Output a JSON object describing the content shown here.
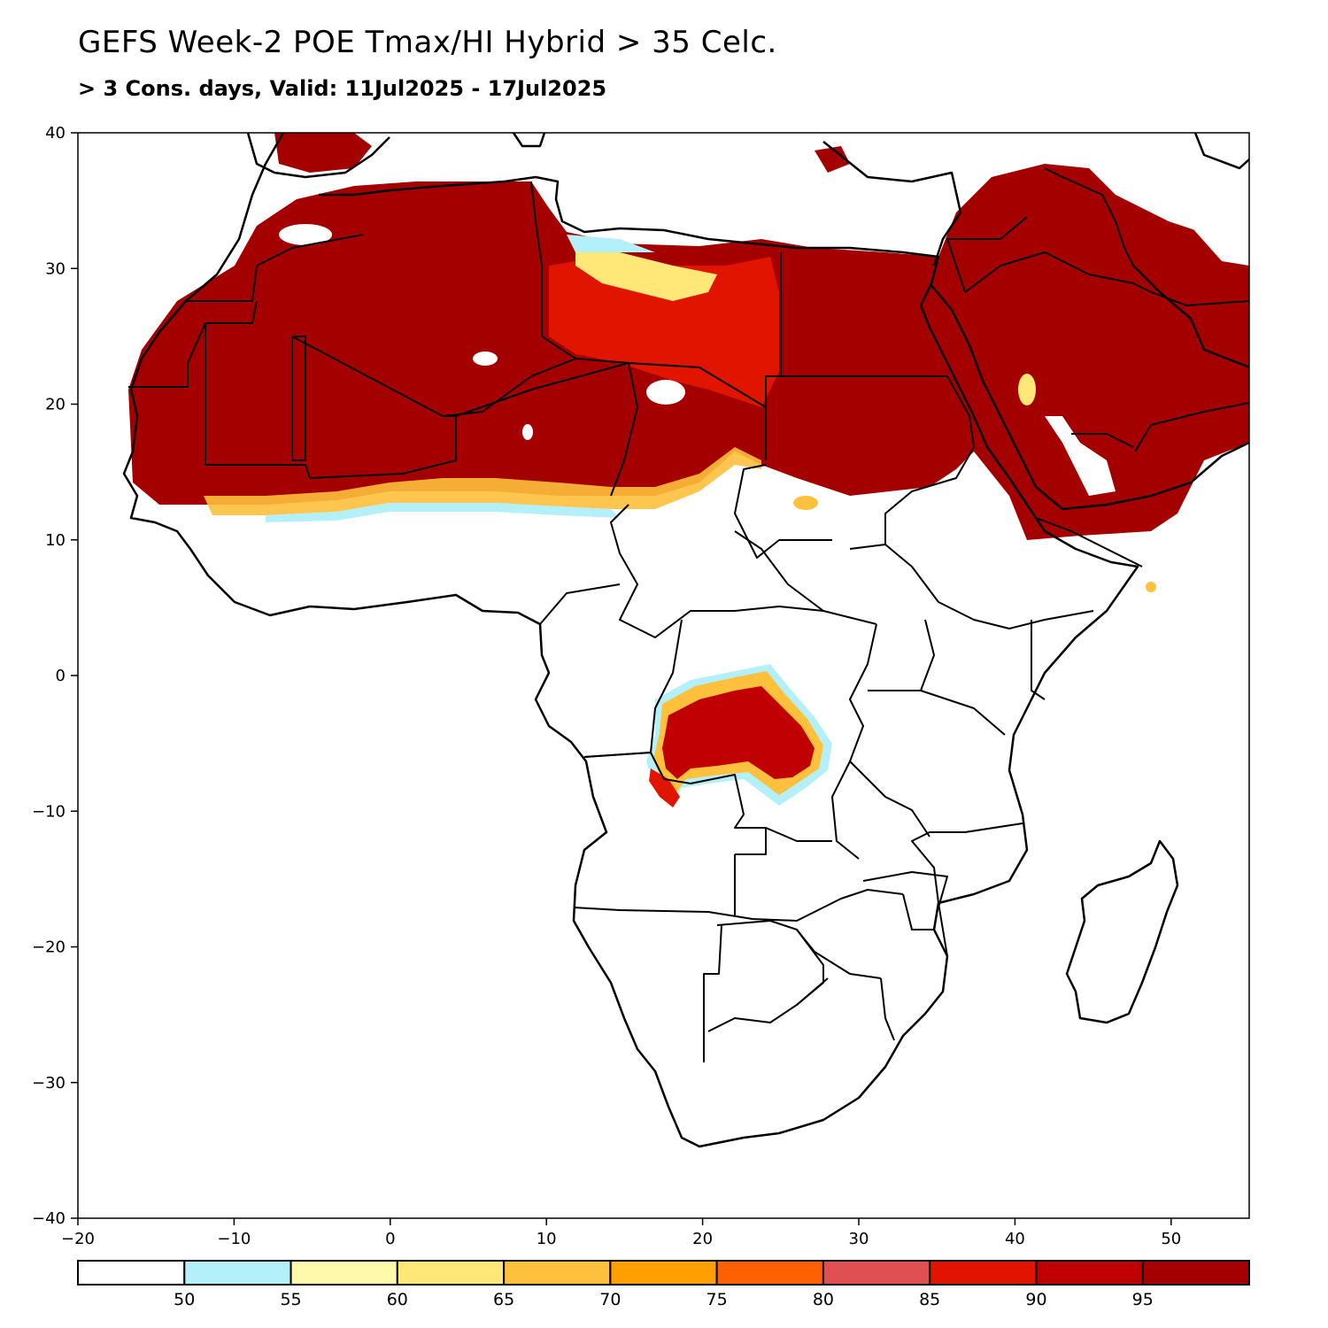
{
  "title": "GEFS Week-2 POE Tmax/HI Hybrid > 35 Celc.",
  "subtitle": "> 3 Cons. days, Valid: 11Jul2025 - 17Jul2025",
  "axes": {
    "lon_ticks": [
      "−20",
      "−10",
      "0",
      "10",
      "20",
      "30",
      "40",
      "50"
    ],
    "lat_ticks": [
      "40",
      "30",
      "20",
      "10",
      "0",
      "−10",
      "−20",
      "−30",
      "−40"
    ]
  },
  "colorbar": {
    "boundaries": [
      "50",
      "55",
      "60",
      "65",
      "70",
      "75",
      "80",
      "85",
      "90",
      "95"
    ],
    "colors": [
      "#ffffff",
      "#b4f0fa",
      "#fffaaa",
      "#ffe878",
      "#ffc03c",
      "#ffa000",
      "#ff6000",
      "#e15050",
      "#e11400",
      "#c00000",
      "#a50000"
    ]
  },
  "map_colors": {
    "land_outline": "#000000",
    "heat_high": "#a50000",
    "heat_mid": "#e11400",
    "heat_low": "#ffc03c",
    "heat_edge": "#b4f0fa"
  }
}
